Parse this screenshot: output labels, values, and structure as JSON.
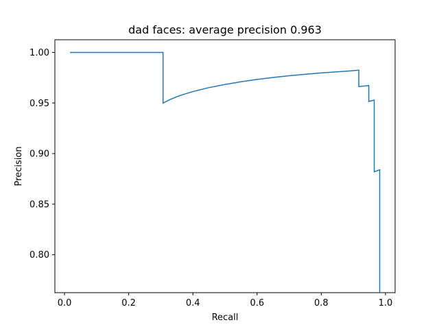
{
  "chart_data": {
    "type": "line",
    "title": "dad faces: average precision 0.963",
    "xlabel": "Recall",
    "ylabel": "Precision",
    "xlim": [
      -0.03,
      1.03
    ],
    "ylim": [
      0.7625,
      1.0125
    ],
    "grid": false,
    "x_ticks": [
      0.0,
      0.2,
      0.4,
      0.6,
      0.8,
      1.0
    ],
    "x_tick_labels": [
      "0.0",
      "0.2",
      "0.4",
      "0.6",
      "0.8",
      "1.0"
    ],
    "y_ticks": [
      0.8,
      0.85,
      0.9,
      0.95,
      1.0
    ],
    "y_tick_labels": [
      "0.80",
      "0.85",
      "0.90",
      "0.95",
      "1.00"
    ],
    "series": [
      {
        "color": "#1f77b4",
        "x": [
          0.017,
          0.307,
          0.307,
          0.33,
          0.36,
          0.4,
          0.45,
          0.5,
          0.55,
          0.6,
          0.65,
          0.7,
          0.75,
          0.8,
          0.85,
          0.9,
          0.917,
          0.917,
          0.948,
          0.948,
          0.965,
          0.965,
          0.982,
          0.982
        ],
        "y": [
          1.0,
          1.0,
          0.95,
          0.9536,
          0.9574,
          0.9613,
          0.9652,
          0.9683,
          0.971,
          0.9733,
          0.9752,
          0.9769,
          0.9784,
          0.9797,
          0.9808,
          0.9819,
          0.9825,
          0.9662,
          0.9673,
          0.9515,
          0.9528,
          0.882,
          0.884,
          0.763
        ]
      }
    ]
  }
}
